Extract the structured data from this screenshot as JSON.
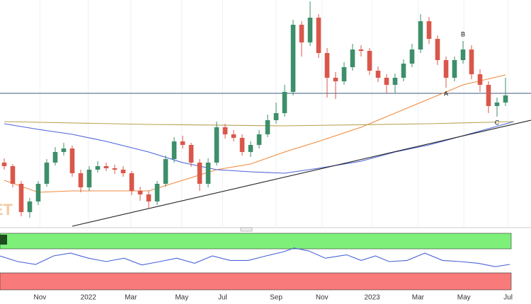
{
  "chart_data": {
    "type": "candlestick",
    "watermark": "ET",
    "up_color": "#3d8f6a",
    "down_color": "#d9574a",
    "xlim": [
      -0.5,
      62
    ],
    "ylim": [
      0,
      320
    ],
    "xticks": [
      {
        "value": 4.2,
        "label": "Nov"
      },
      {
        "value": 9.9,
        "label": "2022"
      },
      {
        "value": 14.9,
        "label": "Mar"
      },
      {
        "value": 20.9,
        "label": "May"
      },
      {
        "value": 25.7,
        "label": "Jul"
      },
      {
        "value": 32,
        "label": "Sep"
      },
      {
        "value": 37.4,
        "label": "Nov"
      },
      {
        "value": 43.3,
        "label": "2023"
      },
      {
        "value": 48.7,
        "label": "Mar"
      },
      {
        "value": 54.1,
        "label": "May"
      },
      {
        "value": 59.3,
        "label": "Jul"
      }
    ],
    "open": [
      90,
      85,
      60,
      20,
      35,
      60,
      90,
      105,
      110,
      75,
      55,
      80,
      85,
      82,
      80,
      75,
      50,
      45,
      35,
      60,
      95,
      120,
      115,
      90,
      60,
      90,
      140,
      130,
      125,
      105,
      115,
      130,
      150,
      160,
      190,
      285,
      260,
      295,
      245,
      210,
      205,
      225,
      250,
      248,
      220,
      210,
      200,
      210,
      230,
      250,
      290,
      265,
      235,
      210,
      235,
      250,
      215,
      200,
      170,
      175
    ],
    "high": [
      96,
      88,
      64,
      40,
      64,
      95,
      112,
      118,
      114,
      80,
      85,
      92,
      90,
      87,
      85,
      78,
      56,
      50,
      64,
      100,
      126,
      128,
      118,
      95,
      96,
      148,
      145,
      136,
      130,
      120,
      136,
      158,
      175,
      200,
      292,
      290,
      318,
      300,
      252,
      218,
      232,
      258,
      256,
      252,
      226,
      215,
      216,
      236,
      258,
      300,
      296,
      270,
      240,
      240,
      262,
      256,
      222,
      205,
      182,
      210
    ],
    "low": [
      80,
      55,
      14,
      12,
      30,
      56,
      86,
      100,
      70,
      48,
      50,
      76,
      78,
      74,
      70,
      44,
      36,
      25,
      30,
      56,
      90,
      110,
      84,
      50,
      55,
      86,
      124,
      120,
      100,
      98,
      110,
      126,
      145,
      155,
      185,
      240,
      255,
      238,
      182,
      180,
      200,
      220,
      240,
      214,
      204,
      188,
      188,
      205,
      225,
      245,
      258,
      228,
      196,
      205,
      230,
      208,
      190,
      160,
      155,
      170
    ],
    "close": [
      85,
      60,
      20,
      35,
      60,
      90,
      105,
      110,
      75,
      55,
      80,
      85,
      82,
      80,
      75,
      50,
      45,
      35,
      60,
      95,
      120,
      115,
      90,
      60,
      90,
      140,
      130,
      125,
      105,
      115,
      130,
      150,
      160,
      190,
      285,
      260,
      295,
      245,
      210,
      205,
      225,
      250,
      248,
      220,
      210,
      200,
      210,
      230,
      250,
      290,
      265,
      235,
      210,
      235,
      250,
      215,
      200,
      170,
      175,
      185
    ],
    "lines": [
      {
        "color": "#f08a3c",
        "x": [
          0,
          4,
          8,
          17,
          21,
          25,
          29,
          33,
          37,
          42,
          46,
          50,
          54,
          59
        ],
        "values": [
          65,
          48,
          50,
          50,
          65,
          80,
          88,
          105,
          120,
          140,
          160,
          180,
          200,
          214
        ]
      },
      {
        "color": "#4a63d8",
        "x": [
          0,
          4,
          8,
          12,
          17,
          21,
          25,
          29,
          33,
          37,
          42,
          46,
          50,
          54,
          60
        ],
        "values": [
          145,
          137,
          130,
          120,
          105,
          90,
          80,
          77,
          75,
          82,
          92,
          105,
          115,
          128,
          148
        ]
      },
      {
        "color": "#b8a254",
        "x": [
          0,
          17,
          33,
          50,
          60
        ],
        "values": [
          148,
          144,
          142,
          145,
          148
        ]
      },
      {
        "color": "#222222",
        "x": [
          8,
          62
        ],
        "values": [
          0,
          150
        ]
      }
    ],
    "hline": {
      "color": "#3f5a7a",
      "value": 188
    },
    "annotations": [
      {
        "label": "A",
        "candle": 52,
        "side": "below"
      },
      {
        "label": "B",
        "candle": 54,
        "side": "above"
      },
      {
        "label": "C",
        "candle": 58,
        "side": "below"
      }
    ],
    "oscillator": {
      "color": "#4a63d8",
      "ylim": [
        0,
        100
      ],
      "x": [
        -0.5,
        1.6,
        3.7,
        5.8,
        7.8,
        9.9,
        12,
        14.1,
        16.2,
        18.3,
        20.3,
        22.4,
        24.5,
        26.6,
        28.7,
        30.8,
        32.8,
        34.1,
        35.8,
        37.8,
        40.3,
        42,
        43.7,
        45.3,
        47.4,
        49.5,
        51.6,
        53.7,
        55.8,
        57.8,
        59.5
      ],
      "values": [
        60,
        50,
        45,
        60,
        65,
        56,
        50,
        56,
        44,
        50,
        56,
        47,
        60,
        52,
        52,
        60,
        67,
        74,
        69,
        56,
        62,
        52,
        60,
        50,
        52,
        65,
        52,
        50,
        47,
        41,
        45
      ]
    }
  }
}
